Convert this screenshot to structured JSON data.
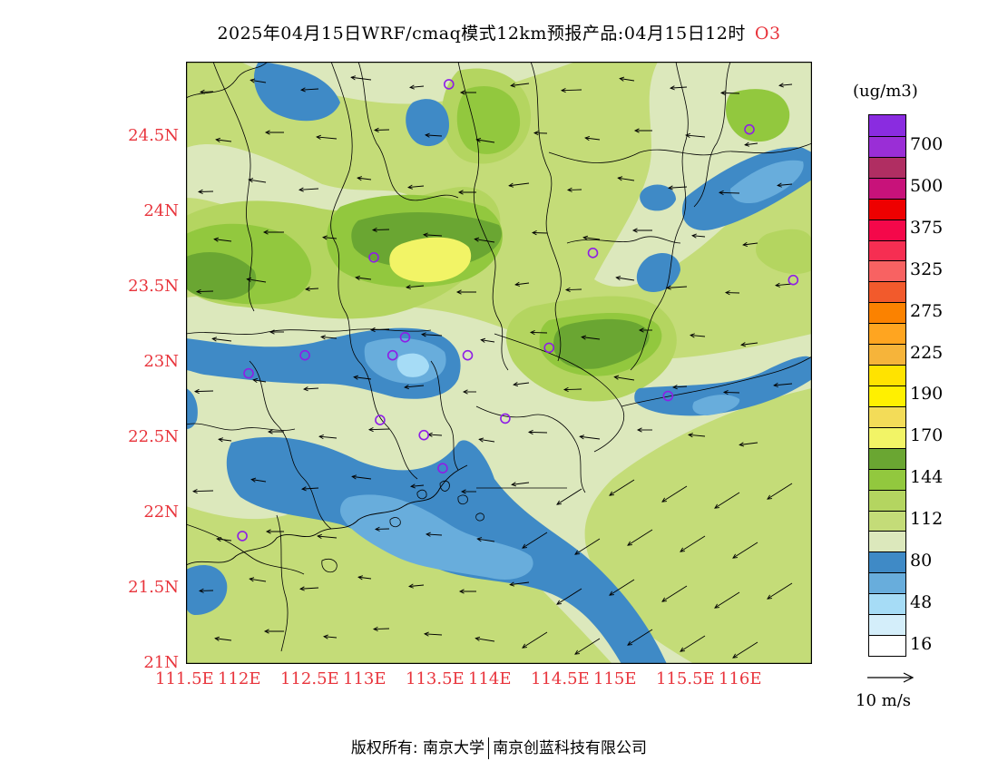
{
  "title": {
    "text": "2025年04月15日WRF/cmaq模式12km预报产品:04月15日12时",
    "species": "O3"
  },
  "axes": {
    "lat_labels": [
      "24.5N",
      "24N",
      "23.5N",
      "23N",
      "22.5N",
      "22N",
      "21.5N",
      "21N"
    ],
    "lon_labels": [
      "111.5E",
      "112E",
      "112.5E",
      "113E",
      "113.5E",
      "114E",
      "114.5E",
      "115E",
      "115.5E",
      "116E"
    ],
    "lat_range": [
      21.0,
      25.0
    ],
    "lon_range": [
      111.5,
      116.5
    ],
    "label_color": "#e8343c"
  },
  "legend": {
    "unit": "(ug/m3)",
    "levels": [
      {
        "label": "",
        "color": "#8a2ce0"
      },
      {
        "label": "700",
        "color": "#9a2ed6"
      },
      {
        "label": "",
        "color": "#b02e62"
      },
      {
        "label": "500",
        "color": "#c8127a"
      },
      {
        "label": "",
        "color": "#ee0000"
      },
      {
        "label": "375",
        "color": "#f4084a"
      },
      {
        "label": "",
        "color": "#f62e52"
      },
      {
        "label": "325",
        "color": "#f86262"
      },
      {
        "label": "",
        "color": "#f25a2c"
      },
      {
        "label": "275",
        "color": "#fb8200"
      },
      {
        "label": "",
        "color": "#ffa520"
      },
      {
        "label": "225",
        "color": "#f6b43a"
      },
      {
        "label": "",
        "color": "#ffe300"
      },
      {
        "label": "190",
        "color": "#fff000"
      },
      {
        "label": "",
        "color": "#f3dc58"
      },
      {
        "label": "170",
        "color": "#f2f466"
      },
      {
        "label": "",
        "color": "#6aa632"
      },
      {
        "label": "144",
        "color": "#92c83e"
      },
      {
        "label": "",
        "color": "#b4d560"
      },
      {
        "label": "112",
        "color": "#c4dc78"
      },
      {
        "label": "",
        "color": "#dce8bc"
      },
      {
        "label": "80",
        "color": "#3f8ac6"
      },
      {
        "label": "",
        "color": "#68addc"
      },
      {
        "label": "48",
        "color": "#a6dcf6"
      },
      {
        "label": "",
        "color": "#d4eefa"
      },
      {
        "label": "16",
        "color": "#ffffff"
      }
    ]
  },
  "wind_reference": {
    "label": "10 m/s"
  },
  "stations": [
    {
      "lon": 113.6,
      "lat": 24.85
    },
    {
      "lon": 116.0,
      "lat": 24.55
    },
    {
      "lon": 113.0,
      "lat": 23.7
    },
    {
      "lon": 114.75,
      "lat": 23.73
    },
    {
      "lon": 116.35,
      "lat": 23.55
    },
    {
      "lon": 112.0,
      "lat": 22.93
    },
    {
      "lon": 112.45,
      "lat": 23.05
    },
    {
      "lon": 113.15,
      "lat": 23.05
    },
    {
      "lon": 113.25,
      "lat": 23.17
    },
    {
      "lon": 113.75,
      "lat": 23.05
    },
    {
      "lon": 114.4,
      "lat": 23.1
    },
    {
      "lon": 115.35,
      "lat": 22.78
    },
    {
      "lon": 113.05,
      "lat": 22.62
    },
    {
      "lon": 113.4,
      "lat": 22.52
    },
    {
      "lon": 114.05,
      "lat": 22.63
    },
    {
      "lon": 113.55,
      "lat": 22.3
    },
    {
      "lon": 111.95,
      "lat": 21.85
    }
  ],
  "copyright": {
    "prefix": "版权所有: 南京大学",
    "suffix": "南京创蓝科技有限公司"
  }
}
